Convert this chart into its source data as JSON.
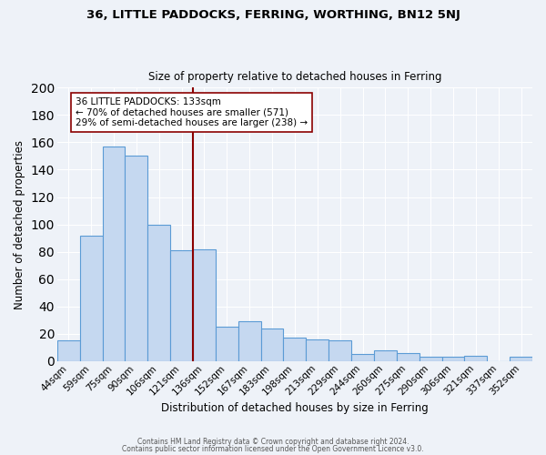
{
  "title1": "36, LITTLE PADDOCKS, FERRING, WORTHING, BN12 5NJ",
  "title2": "Size of property relative to detached houses in Ferring",
  "xlabel": "Distribution of detached houses by size in Ferring",
  "ylabel": "Number of detached properties",
  "categories": [
    "44sqm",
    "59sqm",
    "75sqm",
    "90sqm",
    "106sqm",
    "121sqm",
    "136sqm",
    "152sqm",
    "167sqm",
    "183sqm",
    "198sqm",
    "213sqm",
    "229sqm",
    "244sqm",
    "260sqm",
    "275sqm",
    "290sqm",
    "306sqm",
    "321sqm",
    "337sqm",
    "352sqm"
  ],
  "values": [
    15,
    92,
    157,
    150,
    100,
    81,
    82,
    25,
    29,
    24,
    17,
    16,
    15,
    5,
    8,
    6,
    3,
    3,
    4,
    0,
    3
  ],
  "bar_color": "#c5d8f0",
  "bar_edge_color": "#5b9bd5",
  "vline_index": 6,
  "vline_color": "#8b0000",
  "annotation_text": "36 LITTLE PADDOCKS: 133sqm\n← 70% of detached houses are smaller (571)\n29% of semi-detached houses are larger (238) →",
  "annotation_box_color": "white",
  "annotation_box_edge": "#8b0000",
  "ylim": [
    0,
    200
  ],
  "yticks": [
    0,
    20,
    40,
    60,
    80,
    100,
    120,
    140,
    160,
    180,
    200
  ],
  "footer1": "Contains HM Land Registry data © Crown copyright and database right 2024.",
  "footer2": "Contains public sector information licensed under the Open Government Licence v3.0.",
  "bg_color": "#eef2f8",
  "plot_bg_color": "#eef2f8",
  "grid_color": "#ffffff"
}
